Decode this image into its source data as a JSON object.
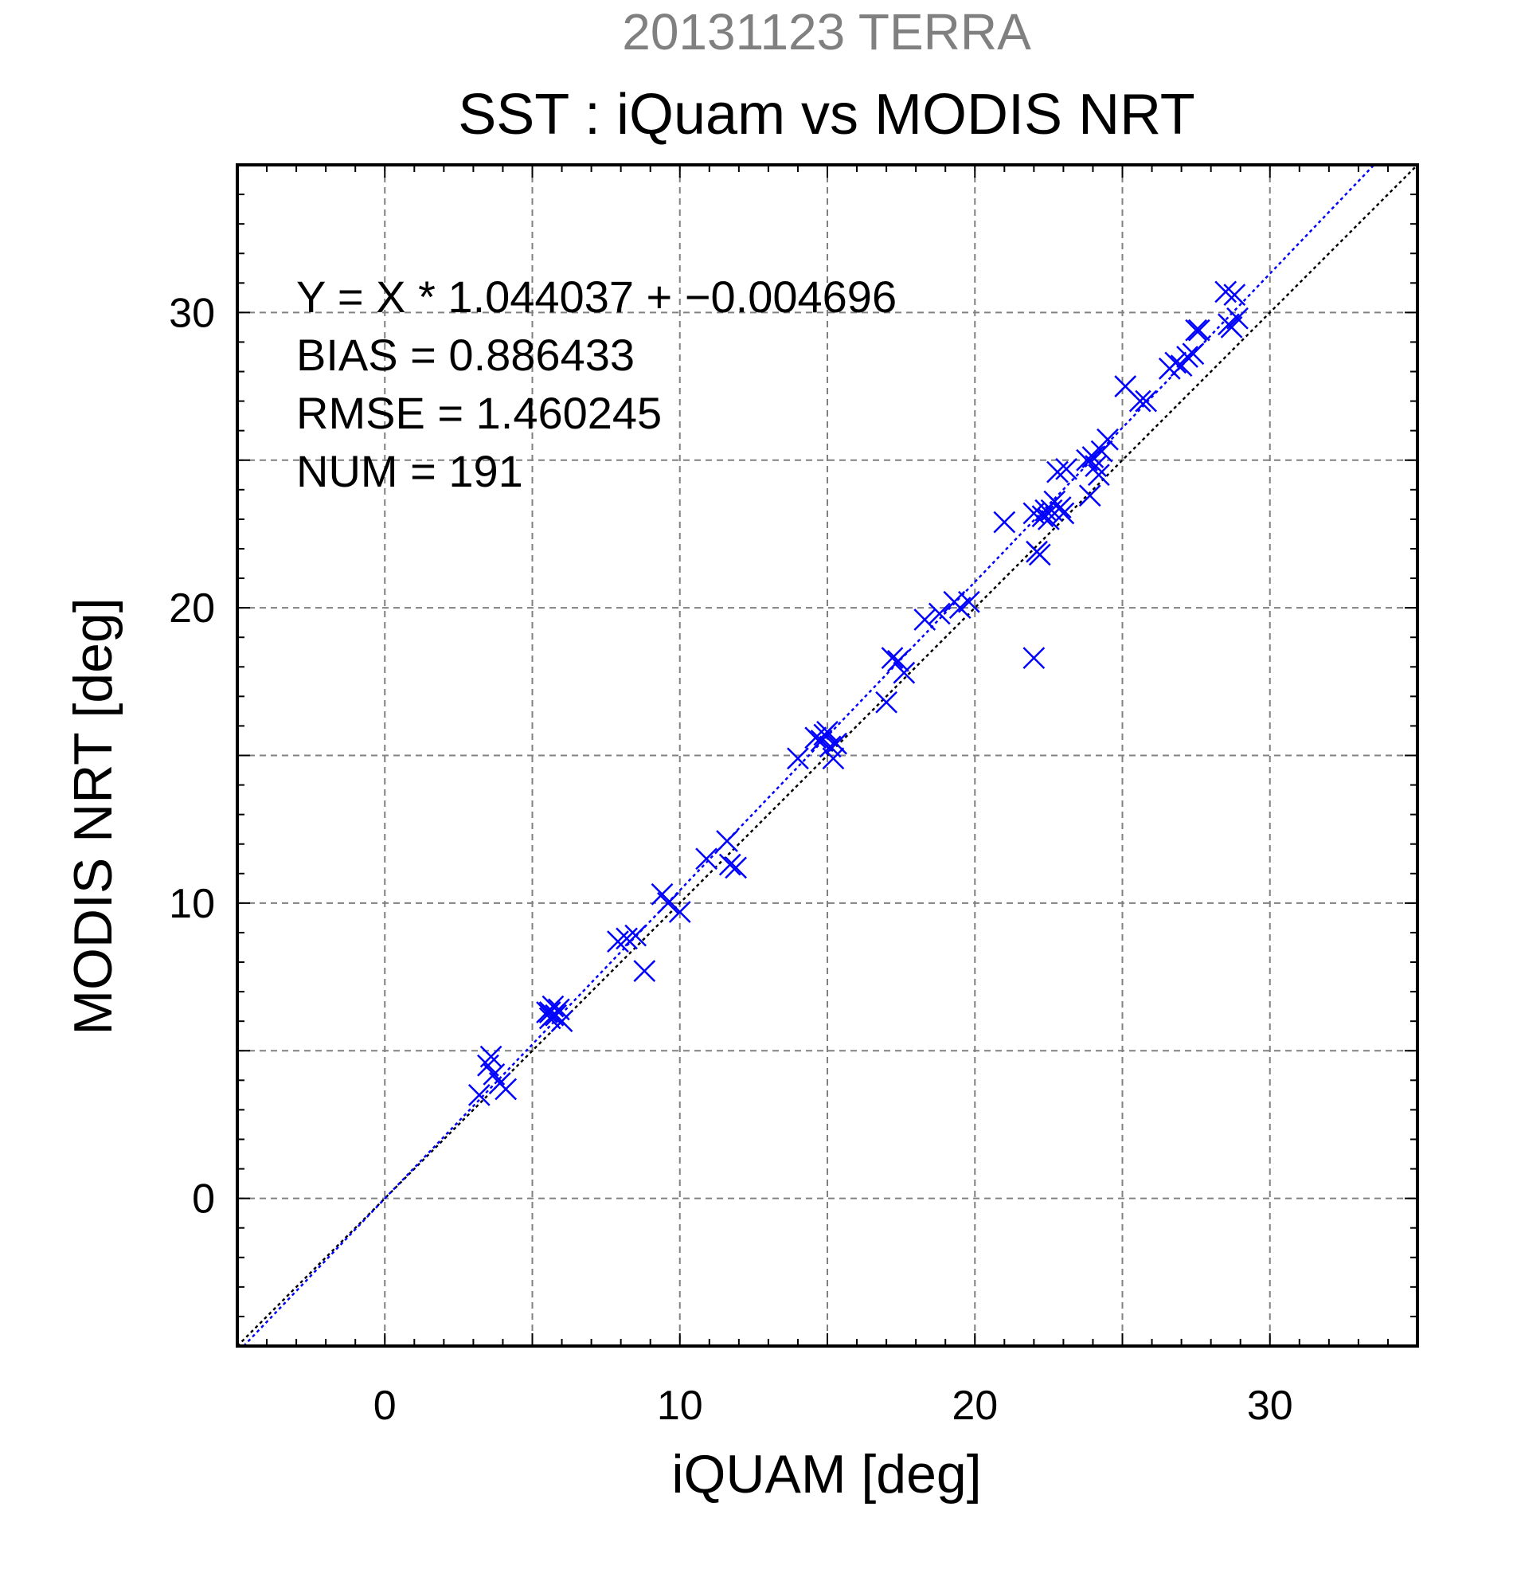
{
  "chart_data": {
    "type": "scatter",
    "suptitle": "20131123 TERRA",
    "title": "SST : iQuam vs MODIS NRT",
    "xlabel": "iQUAM [deg]",
    "ylabel": "MODIS NRT [deg]",
    "xlim": [
      -5,
      35
    ],
    "ylim": [
      -5,
      35
    ],
    "xticks": [
      0,
      10,
      20,
      30
    ],
    "yticks": [
      0,
      10,
      20,
      30
    ],
    "xtick_labels": [
      "0",
      "10",
      "20",
      "30"
    ],
    "ytick_labels": [
      "0",
      "10",
      "20",
      "30"
    ],
    "grid": true,
    "stats": [
      "Y = X * 1.044037 + −0.004696",
      "BIAS = 0.886433",
      "RMSE = 1.460245",
      "NUM = 191"
    ],
    "fit": {
      "slope": 1.044037,
      "intercept": -0.004696,
      "color": "#0000ff",
      "style": "dotted"
    },
    "reference_line": {
      "slope": 1,
      "intercept": 0,
      "color": "#000000",
      "style": "dotted"
    },
    "marker_color": "#0000ff",
    "marker": "x",
    "points": [
      [
        3.2,
        3.5
      ],
      [
        3.6,
        4.8
      ],
      [
        3.7,
        4.2
      ],
      [
        3.9,
        3.9
      ],
      [
        4.1,
        3.7
      ],
      [
        3.5,
        4.5
      ],
      [
        5.5,
        6.3
      ],
      [
        5.6,
        6.1
      ],
      [
        5.7,
        6.5
      ],
      [
        5.8,
        6.2
      ],
      [
        5.9,
        6.4
      ],
      [
        6.0,
        6.0
      ],
      [
        5.6,
        6.3
      ],
      [
        5.7,
        6.2
      ],
      [
        7.9,
        8.7
      ],
      [
        8.2,
        8.8
      ],
      [
        8.5,
        8.9
      ],
      [
        8.8,
        7.7
      ],
      [
        9.4,
        10.3
      ],
      [
        9.6,
        10.0
      ],
      [
        10.0,
        9.7
      ],
      [
        10.9,
        11.5
      ],
      [
        11.6,
        12.1
      ],
      [
        11.7,
        11.3
      ],
      [
        11.9,
        11.2
      ],
      [
        14.0,
        14.9
      ],
      [
        14.6,
        15.6
      ],
      [
        14.8,
        15.5
      ],
      [
        15.0,
        15.8
      ],
      [
        15.1,
        15.3
      ],
      [
        15.2,
        14.9
      ],
      [
        15.3,
        15.4
      ],
      [
        14.9,
        15.7
      ],
      [
        17.0,
        16.8
      ],
      [
        17.2,
        18.3
      ],
      [
        17.4,
        18.2
      ],
      [
        17.6,
        17.8
      ],
      [
        18.3,
        19.6
      ],
      [
        18.8,
        19.8
      ],
      [
        19.3,
        20.2
      ],
      [
        19.5,
        20.0
      ],
      [
        19.8,
        20.2
      ],
      [
        21.0,
        22.9
      ],
      [
        22.0,
        18.3
      ],
      [
        22.1,
        21.9
      ],
      [
        22.2,
        21.8
      ],
      [
        22.0,
        23.2
      ],
      [
        22.3,
        23.1
      ],
      [
        22.6,
        23.3
      ],
      [
        22.7,
        23.6
      ],
      [
        22.8,
        24.6
      ],
      [
        22.9,
        23.4
      ],
      [
        23.0,
        23.2
      ],
      [
        23.1,
        24.7
      ],
      [
        22.5,
        23.0
      ],
      [
        22.4,
        23.3
      ],
      [
        23.8,
        25.0
      ],
      [
        23.9,
        23.8
      ],
      [
        24.1,
        24.8
      ],
      [
        24.2,
        24.5
      ],
      [
        24.3,
        25.3
      ],
      [
        24.5,
        25.7
      ],
      [
        24.0,
        25.1
      ],
      [
        25.1,
        27.5
      ],
      [
        25.6,
        27.0
      ],
      [
        25.8,
        27.0
      ],
      [
        26.6,
        28.1
      ],
      [
        26.8,
        28.3
      ],
      [
        27.0,
        28.2
      ],
      [
        27.2,
        28.5
      ],
      [
        27.4,
        28.6
      ],
      [
        27.5,
        29.4
      ],
      [
        27.6,
        29.4
      ],
      [
        28.5,
        30.7
      ],
      [
        28.7,
        29.5
      ],
      [
        28.8,
        30.6
      ],
      [
        28.9,
        29.8
      ],
      [
        28.6,
        29.6
      ]
    ]
  }
}
